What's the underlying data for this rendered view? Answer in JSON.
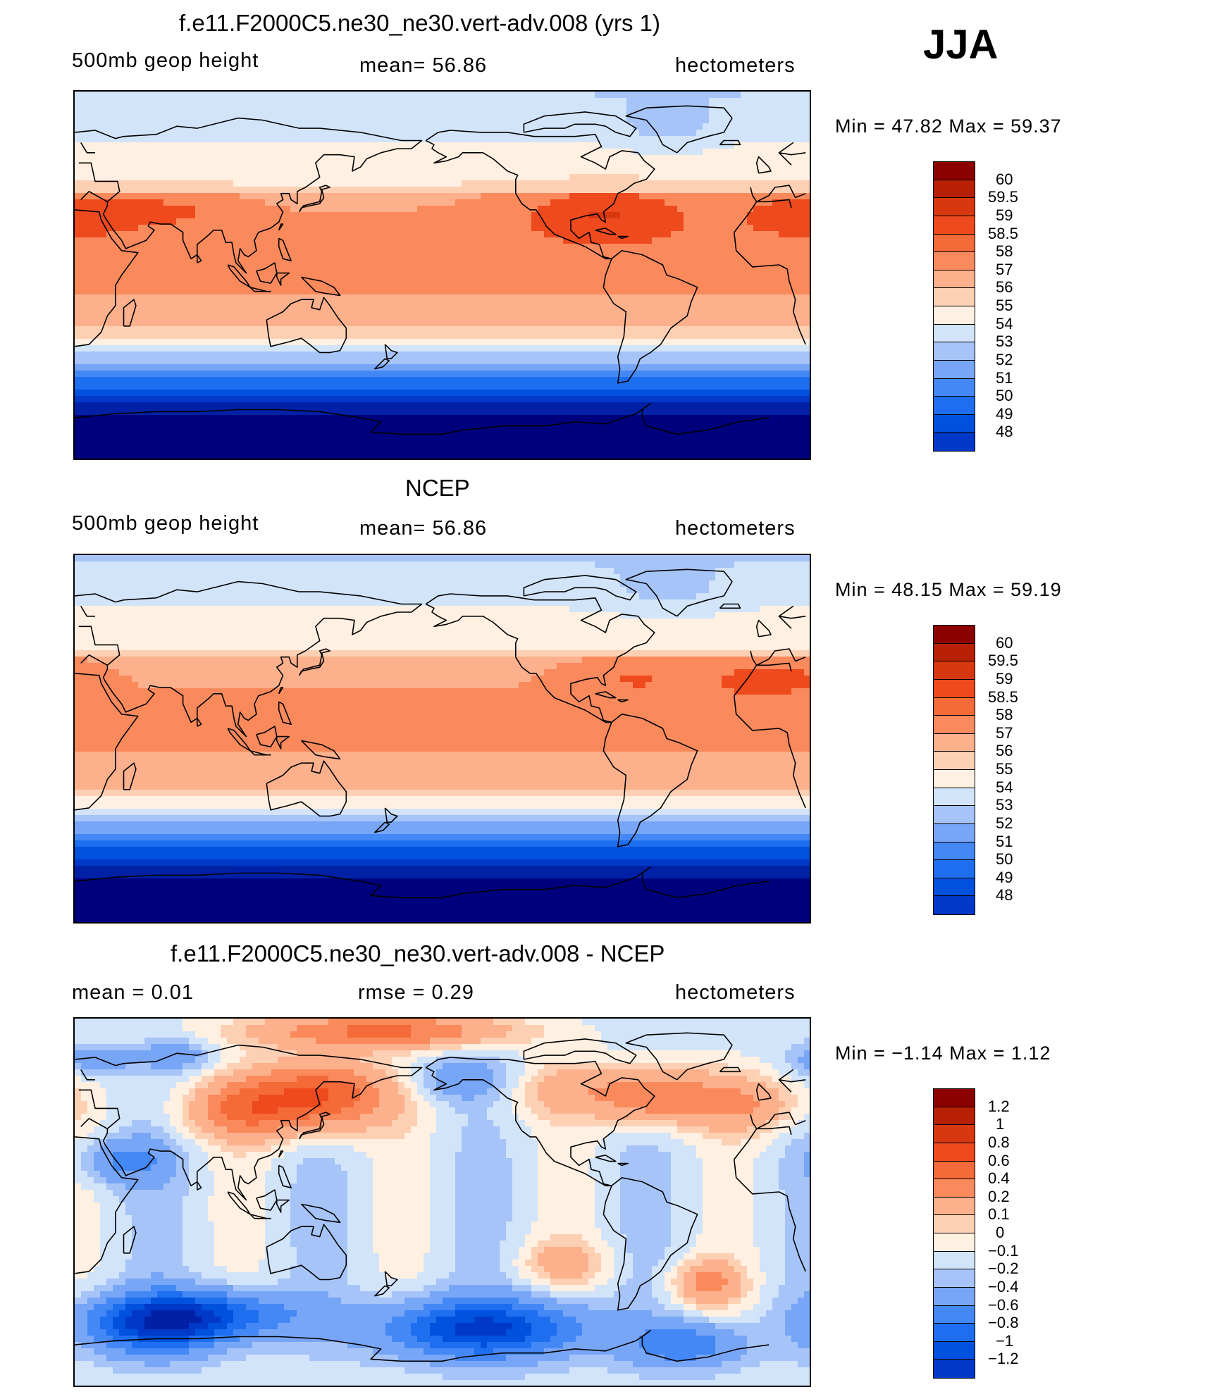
{
  "season_label": "JJA",
  "colors": {
    "scale": [
      "#00007d",
      "#0021a6",
      "#0039c7",
      "#0051de",
      "#1e6ef0",
      "#4488f5",
      "#78a6f7",
      "#a6c4f8",
      "#d2e4fa",
      "#fff0e1",
      "#fdd0b4",
      "#fcb08c",
      "#fa8a5c",
      "#f46a38",
      "#ee4a1e",
      "#d8380f",
      "#b82006",
      "#8c0000"
    ],
    "base_ramp": [
      "#00007d",
      "#0021a6",
      "#0039c7",
      "#0051de",
      "#1e6ef0",
      "#4488f5",
      "#78a6f7",
      "#a6c4f8",
      "#d2e4fa",
      "#fff0e1",
      "#fdd0b4",
      "#fcb08c",
      "#fa8a5c",
      "#ee4a1e",
      "#d8380f",
      "#b82006",
      "#8c0000"
    ],
    "coast": "#000000"
  },
  "panels": [
    {
      "title": "f.e11.F2000C5.ne30_ne30.vert-adv.008 (yrs 1)",
      "left_label": "500mb  geop  height",
      "center_label": "mean=   56.86",
      "right_label": "hectometers",
      "minmax": "Min  =    47.82  Max  =    59.37",
      "colorbar_labels": [
        "60",
        "59.5",
        "59",
        "58.5",
        "58",
        "57",
        "56",
        "55",
        "54",
        "53",
        "52",
        "51",
        "50",
        "49",
        "48"
      ],
      "field_type": "model"
    },
    {
      "title": "NCEP",
      "left_label": "500mb  geop  height",
      "center_label": "mean=   56.86",
      "right_label": "hectometers",
      "minmax": "Min  =    48.15  Max  =    59.19",
      "colorbar_labels": [
        "60",
        "59.5",
        "59",
        "58.5",
        "58",
        "57",
        "56",
        "55",
        "54",
        "53",
        "52",
        "51",
        "50",
        "49",
        "48"
      ],
      "field_type": "obs"
    },
    {
      "title": "f.e11.F2000C5.ne30_ne30.vert-adv.008 - NCEP",
      "left_label": "mean  =      0.01",
      "center_label": "rmse  =      0.29",
      "right_label": "hectometers",
      "minmax": "Min  =    −1.14  Max  =      1.12",
      "colorbar_labels": [
        "1.2",
        "1",
        "0.8",
        "0.6",
        "0.4",
        "0.2",
        "0.1",
        "0",
        "−0.1",
        "−0.2",
        "−0.4",
        "−0.6",
        "−0.8",
        "−1",
        "−1.2"
      ],
      "field_type": "diff"
    }
  ]
}
